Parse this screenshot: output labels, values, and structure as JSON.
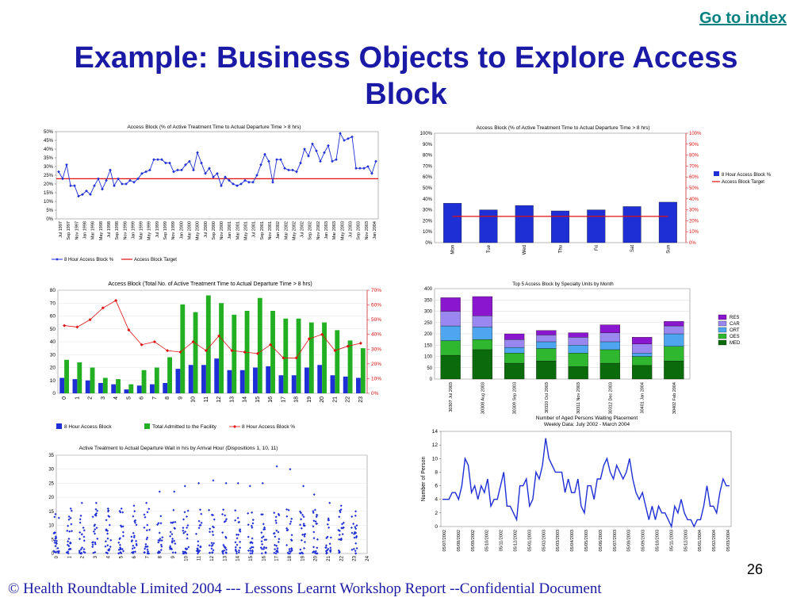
{
  "header": {
    "goto_label": "Go to index",
    "title_line1": "Example: Business Objects to Explore Access",
    "title_line2": "Block"
  },
  "footer": {
    "page_number": "26",
    "text": "© Health Roundtable Limited 2004  ---   Lessons Learnt Workshop Report --Confidential Document"
  },
  "colors": {
    "title": "#1a1aa6",
    "link": "#008080",
    "series_blue": "#1f2fd6",
    "series_red": "#e01010",
    "series_green": "#22b022"
  },
  "chart_data": [
    {
      "type": "line",
      "title": "Access Block (% of Active Treatment Time to Actual Departure Time > 8 hrs)",
      "x_labels": [
        "Jul 1997",
        "Sep 1997",
        "Nov 1997",
        "Jan 1998",
        "Mar 1998",
        "May 1998",
        "Jul 1998",
        "Sep 1998",
        "Nov 1998",
        "Jan 1999",
        "Mar 1999",
        "May 1999",
        "Jul 1999",
        "Sep 1999",
        "Nov 1999",
        "Jan 2000",
        "Mar 2000",
        "May 2000",
        "Jul 2000",
        "Sep 2000",
        "Nov 2000",
        "Jan 2001",
        "Mar 2001",
        "May 2001",
        "Jul 2001",
        "Sep 2001",
        "Nov 2001",
        "Jan 2002",
        "Mar 2002",
        "May 2002",
        "Jul 2002",
        "Sep 2002",
        "Nov 2002",
        "Jan 2003",
        "Mar 2003",
        "May 2003",
        "Jul 2003",
        "Sep 2003",
        "Nov 2003",
        "Jan 2004"
      ],
      "y_ticks": [
        "0%",
        "5%",
        "10%",
        "15%",
        "20%",
        "25%",
        "30%",
        "35%",
        "40%",
        "45%",
        "50%"
      ],
      "ylim": [
        0,
        50
      ],
      "series": [
        {
          "name": "8 Hour Access Block %",
          "values": [
            27,
            23,
            31,
            19,
            19,
            13,
            14,
            16,
            14,
            19,
            23,
            17,
            22,
            28,
            19,
            23,
            20,
            20,
            22,
            21,
            23,
            26,
            27,
            28,
            34,
            34,
            34,
            32,
            32,
            27,
            28,
            28,
            31,
            33,
            28,
            38,
            32,
            26,
            29,
            24,
            26,
            19,
            24,
            22,
            20,
            19,
            20,
            22,
            21,
            21,
            25,
            31,
            37,
            33,
            21,
            34,
            34,
            29,
            28,
            28,
            27,
            32,
            40,
            36,
            43,
            39,
            33,
            38,
            42,
            33,
            34,
            49,
            45,
            46,
            47,
            29,
            29,
            29,
            30,
            26,
            33
          ]
        },
        {
          "name": "Access Block Target",
          "values": [
            23
          ]
        }
      ],
      "legend": "bottom"
    },
    {
      "type": "bar",
      "title": "Access Block (% of Active Treatment Time to Actual Departure Time > 8 hrs)",
      "categories": [
        "Mon",
        "Tue",
        "Wed",
        "Thu",
        "Fri",
        "Sat",
        "Sun"
      ],
      "y_ticks": [
        "0%",
        "10%",
        "20%",
        "30%",
        "40%",
        "50%",
        "60%",
        "70%",
        "80%",
        "90%",
        "100%"
      ],
      "ylim": [
        0,
        100
      ],
      "series": [
        {
          "name": "8 Hour Access Block %",
          "values": [
            36,
            30,
            34,
            29,
            30,
            33,
            37
          ]
        },
        {
          "name": "Access Block Target",
          "values": [
            24,
            24,
            24,
            24,
            24,
            24,
            24
          ]
        }
      ],
      "legend": "right"
    },
    {
      "type": "bar",
      "title": "Access Block (Total No. of Active Treatment Time to Actual Departure Time > 8 hrs)",
      "categories": [
        "0",
        "1",
        "2",
        "3",
        "4",
        "5",
        "6",
        "7",
        "8",
        "9",
        "10",
        "11",
        "12",
        "13",
        "14",
        "15",
        "16",
        "17",
        "18",
        "19",
        "20",
        "21",
        "22",
        "23"
      ],
      "y_ticks_left": [
        "0",
        "10",
        "20",
        "30",
        "40",
        "50",
        "60",
        "70",
        "80"
      ],
      "y_ticks_right": [
        "0%",
        "10%",
        "20%",
        "30%",
        "40%",
        "50%",
        "60%",
        "70%"
      ],
      "ylim_left": [
        0,
        80
      ],
      "ylim_right": [
        0,
        70
      ],
      "series": [
        {
          "name": "8 Hour Access Block",
          "values": [
            12,
            11,
            10,
            8,
            7,
            3,
            6,
            7,
            8,
            19,
            22,
            22,
            27,
            18,
            18,
            20,
            21,
            14,
            14,
            20,
            22,
            14,
            13,
            12
          ]
        },
        {
          "name": "Total Admitted to the Facility",
          "values": [
            26,
            24,
            20,
            12,
            11,
            7,
            18,
            20,
            28,
            69,
            63,
            76,
            70,
            61,
            64,
            74,
            64,
            58,
            58,
            55,
            55,
            49,
            41,
            35
          ]
        },
        {
          "name": "8 Hour Access Block %",
          "values": [
            46,
            45,
            50,
            58,
            63,
            43,
            33,
            35,
            29,
            28,
            35,
            29,
            39,
            29,
            28,
            27,
            33,
            24,
            24,
            37,
            40,
            29,
            32,
            34
          ]
        }
      ],
      "legend": "bottom"
    },
    {
      "type": "bar",
      "title": "Top 5 Access Block by Specialty Units by Month",
      "categories": [
        "30307  Jul 2003",
        "30308  Aug 2003",
        "30309  Sep 2003",
        "30310  Oct 2003",
        "30311  Nov 2003",
        "30312  Dec 2003",
        "30401  Jan 2004",
        "30402  Feb 2004"
      ],
      "y_ticks": [
        "0",
        "50",
        "100",
        "150",
        "200",
        "250",
        "300",
        "350",
        "400"
      ],
      "ylim": [
        0,
        400
      ],
      "series": [
        {
          "name": "MED",
          "values": [
            105,
            130,
            70,
            80,
            55,
            70,
            60,
            80
          ]
        },
        {
          "name": "OES",
          "values": [
            65,
            45,
            45,
            55,
            60,
            60,
            40,
            65
          ]
        },
        {
          "name": "ORT",
          "values": [
            65,
            55,
            25,
            30,
            35,
            35,
            15,
            55
          ]
        },
        {
          "name": "CAR",
          "values": [
            65,
            50,
            35,
            30,
            35,
            40,
            40,
            35
          ]
        },
        {
          "name": "RES",
          "values": [
            60,
            85,
            25,
            20,
            20,
            35,
            30,
            20
          ]
        }
      ],
      "legend": "right"
    },
    {
      "type": "scatter",
      "title": "Active Treatment to Actual Departure Wait in hrs by Arrival Hour (Dispositions 1, 10, 11)",
      "x_labels": [
        "0",
        "1",
        "2",
        "3",
        "4",
        "5",
        "6",
        "7",
        "8",
        "9",
        "10",
        "11",
        "12",
        "13",
        "14",
        "15",
        "16",
        "17",
        "18",
        "19",
        "20",
        "21",
        "22",
        "23",
        "24"
      ],
      "y_ticks": [
        "0",
        "5",
        "10",
        "15",
        "20",
        "25",
        "30",
        "35"
      ],
      "ylim": [
        0,
        35
      ],
      "max_values": [
        14,
        16,
        18,
        18,
        16,
        16,
        17,
        18,
        22,
        22,
        24,
        25,
        26,
        25,
        25,
        24,
        25,
        31,
        30,
        24,
        21,
        18,
        17,
        15
      ],
      "series": [
        {
          "name": "",
          "values": []
        }
      ]
    },
    {
      "type": "line",
      "title": "Number of Aged Persons Waiting Placement",
      "subtitle": "Weekly Data: July 2002 - March 2004",
      "ylabel": "Number of Person",
      "x_labels": [
        "05/07/2002",
        "05/08/2002",
        "05/09/2002",
        "05/10/2002",
        "05/11/2002",
        "05/12/2002",
        "05/01/2003",
        "05/02/2003",
        "05/03/2003",
        "05/04/2003",
        "05/05/2003",
        "05/06/2003",
        "05/07/2003",
        "05/08/2003",
        "05/09/2003",
        "05/10/2003",
        "05/11/2003",
        "05/12/2003",
        "05/01/2004",
        "05/02/2004",
        "05/03/2004"
      ],
      "y_ticks": [
        "0",
        "2",
        "4",
        "6",
        "8",
        "10",
        "12",
        "14"
      ],
      "ylim": [
        0,
        14
      ],
      "series": [
        {
          "name": "",
          "values": [
            4,
            4,
            4,
            5,
            5,
            4,
            6,
            10,
            9,
            5,
            6,
            4,
            6,
            5,
            7,
            3,
            4,
            4,
            6,
            8,
            3,
            3,
            2,
            1,
            6,
            6,
            7,
            3,
            4,
            8,
            7,
            9,
            13,
            10,
            9,
            8,
            8,
            8,
            5,
            7,
            5,
            5,
            7,
            3,
            2,
            6,
            6,
            4,
            7,
            7,
            9,
            10,
            8,
            7,
            9,
            8,
            7,
            8,
            10,
            7,
            5,
            4,
            5,
            3,
            1,
            3,
            1,
            3,
            2,
            2,
            1,
            0,
            3,
            2,
            4,
            2,
            1,
            1,
            0,
            1,
            1,
            3,
            6,
            3,
            3,
            2,
            5,
            7,
            6,
            6
          ]
        }
      ]
    }
  ]
}
